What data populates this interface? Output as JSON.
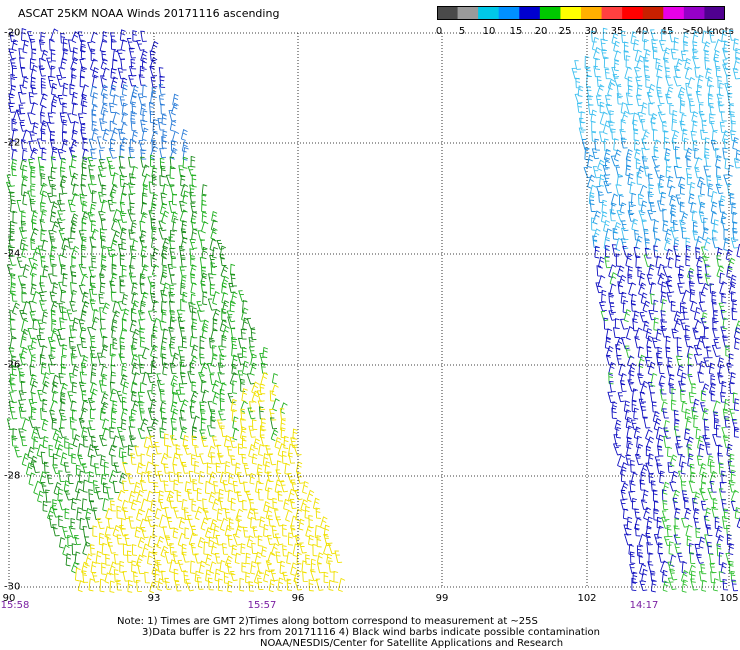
{
  "title": "ASCAT 25KM NOAA Winds 20171116 ascending",
  "colorbar": {
    "colors": [
      "#4a4a4a",
      "#9a9a9a",
      "#00c8e8",
      "#0090ff",
      "#0000d0",
      "#00c800",
      "#ffff00",
      "#ffb000",
      "#ff4040",
      "#ff0000",
      "#c82000",
      "#e800e8",
      "#9600c8",
      "#500090"
    ],
    "labels": [
      "0",
      "5",
      "10",
      "15",
      "20",
      "25",
      "30",
      "35",
      "40",
      "45",
      ">50 knots"
    ]
  },
  "axes": {
    "lat_labels": [
      "-20",
      "-22",
      "-24",
      "-26",
      "-28",
      "-30"
    ],
    "lon_labels": [
      "90",
      "93",
      "96",
      "99",
      "102",
      "105"
    ],
    "time_labels": [
      "15:58",
      "15:57",
      "14:17"
    ]
  },
  "notes": [
    "Note: 1) Times are GMT 2)Times along bottom correspond to measurement at ~25S",
    "3)Data buffer is 22 hrs from 20171116 4) Black wind barbs indicate possible contamination",
    "NOAA/NESDIS/Center for Satellite Applications and Research"
  ],
  "swaths": [
    {
      "name": "western-swath",
      "band_colors": [
        "#1010c0",
        "#2a7cd8",
        "#20b020",
        "#1a8a1a",
        "#f0e000"
      ]
    },
    {
      "name": "eastern-swath",
      "band_colors": [
        "#40c0f0",
        "#2090e0",
        "#1010c0",
        "#30c030"
      ]
    }
  ]
}
